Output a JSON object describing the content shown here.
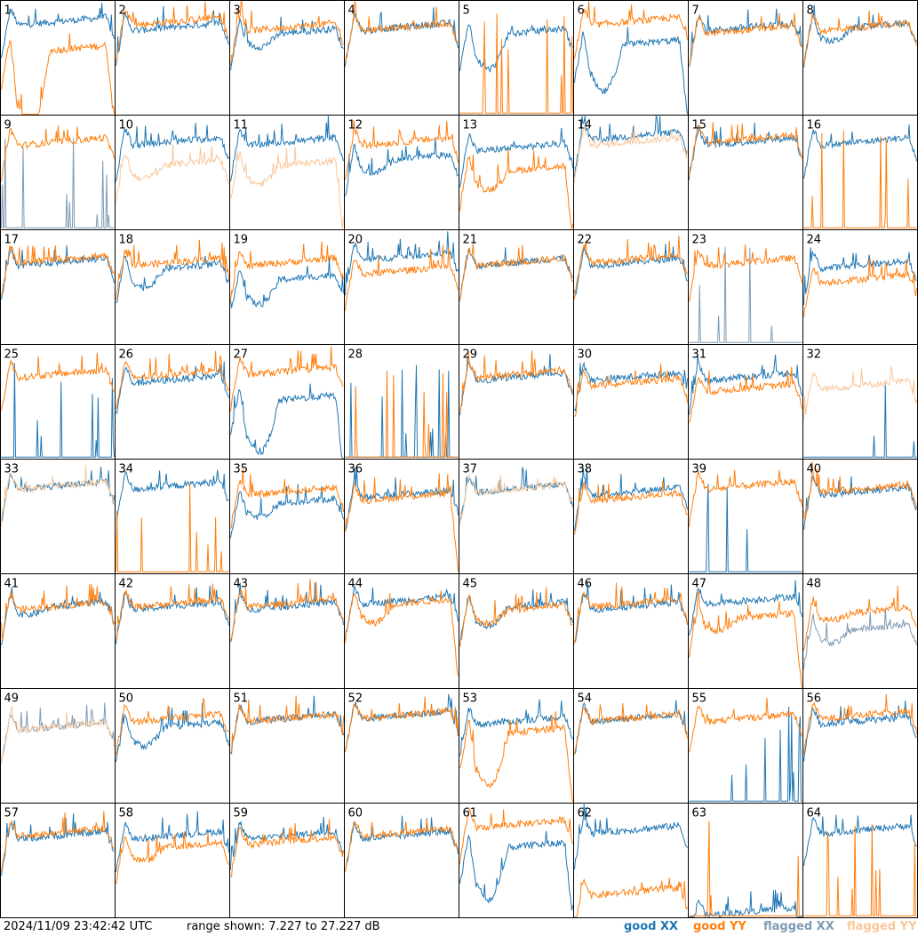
{
  "chart_data": {
    "type": "line",
    "layout": "small-multiples",
    "rows": 8,
    "cols": 8,
    "panel_labels": [
      "1",
      "2",
      "3",
      "4",
      "5",
      "6",
      "7",
      "8",
      "9",
      "10",
      "11",
      "12",
      "13",
      "14",
      "15",
      "16",
      "17",
      "18",
      "19",
      "20",
      "21",
      "22",
      "23",
      "24",
      "25",
      "26",
      "27",
      "28",
      "29",
      "30",
      "31",
      "32",
      "33",
      "34",
      "35",
      "36",
      "37",
      "38",
      "39",
      "40",
      "41",
      "42",
      "43",
      "44",
      "45",
      "46",
      "47",
      "48",
      "49",
      "50",
      "51",
      "52",
      "53",
      "54",
      "55",
      "56",
      "57",
      "58",
      "59",
      "60",
      "61",
      "62",
      "63",
      "64"
    ],
    "y_range_db": [
      7.227,
      27.227
    ],
    "grid": false,
    "series_legend": [
      {
        "key": "good_xx",
        "label": "good XX",
        "color": "#1f77b4"
      },
      {
        "key": "good_yy",
        "label": "good YY",
        "color": "#ff7f0e"
      },
      {
        "key": "flagged_xx",
        "label": "flagged XX",
        "color": "#7f9bb5"
      },
      {
        "key": "flagged_yy",
        "label": "flagged YY",
        "color": "#f9c79b"
      }
    ],
    "panels": [
      {
        "xx": "good",
        "yy": "good",
        "xx_level": 23,
        "yy_level": 18,
        "xx_dip": 0,
        "yy_dip": 14,
        "yy_end_drop": true
      },
      {
        "xx": "good",
        "yy": "good",
        "xx_level": 22,
        "yy_level": 23,
        "xx_dip": 0,
        "yy_dip": 0
      },
      {
        "xx": "good",
        "yy": "good",
        "xx_level": 21,
        "yy_level": 22,
        "xx_dip": 2,
        "yy_dip": 0
      },
      {
        "xx": "good",
        "yy": "good",
        "xx_level": 22,
        "yy_level": 22,
        "xx_dip": 0,
        "yy_dip": 0
      },
      {
        "xx": "good",
        "yy": "good",
        "yy_spiky": true,
        "xx_level": 21,
        "yy_level": 7.5,
        "xx_dip": 6,
        "yy_dip": 0
      },
      {
        "xx": "good",
        "yy": "good",
        "xx_level": 19,
        "yy_level": 23,
        "xx_dip": 8,
        "yy_dip": 0,
        "xx_end_drop": true
      },
      {
        "xx": "good",
        "yy": "good",
        "xx_level": 22,
        "yy_level": 21.5,
        "xx_dip": 0,
        "yy_dip": 0
      },
      {
        "xx": "good",
        "yy": "good",
        "xx_level": 22,
        "yy_level": 22,
        "xx_dip": 2,
        "yy_dip": 0
      },
      {
        "xx": "flagged",
        "yy": "good",
        "xx_spiky": true,
        "xx_level": 7.5,
        "yy_level": 22,
        "xx_dip": 0,
        "yy_dip": 0
      },
      {
        "xx": "good",
        "yy": "flagged",
        "xx_level": 22,
        "yy_level": 18,
        "xx_dip": 0,
        "yy_dip": 2
      },
      {
        "xx": "good",
        "yy": "flagged",
        "xx_level": 22,
        "yy_level": 18,
        "xx_dip": 0,
        "yy_dip": 3,
        "yy_end_drop": true
      },
      {
        "xx": "good",
        "yy": "good",
        "xx_level": 19,
        "yy_level": 22,
        "xx_dip": 2,
        "yy_dip": 0
      },
      {
        "xx": "good",
        "yy": "good",
        "xx_level": 21,
        "yy_level": 17,
        "xx_dip": 0,
        "yy_dip": 3,
        "yy_end_drop": true
      },
      {
        "xx": "good",
        "yy": "flagged",
        "xx_level": 23,
        "yy_level": 22,
        "xx_dip": 0,
        "yy_dip": 0
      },
      {
        "xx": "good",
        "yy": "good",
        "xx_level": 22,
        "yy_level": 22.5,
        "xx_dip": 0,
        "yy_dip": 0
      },
      {
        "xx": "good",
        "yy": "good",
        "yy_spiky": true,
        "xx_level": 22,
        "yy_level": 7.5,
        "xx_dip": 0,
        "yy_dip": 0
      },
      {
        "xx": "good",
        "yy": "good",
        "xx_level": 21,
        "yy_level": 21.5,
        "xx_dip": 0,
        "yy_dip": 0
      },
      {
        "xx": "good",
        "yy": "good",
        "xx_level": 20,
        "yy_level": 21,
        "xx_dip": 3,
        "yy_dip": 0
      },
      {
        "xx": "good",
        "yy": "good",
        "xx_level": 18,
        "yy_level": 21,
        "xx_dip": 4,
        "yy_dip": 0
      },
      {
        "xx": "good",
        "yy": "good",
        "xx_level": 22,
        "yy_level": 19.5,
        "xx_dip": 0,
        "yy_dip": 0
      },
      {
        "xx": "good",
        "yy": "good",
        "xx_level": 21,
        "yy_level": 21,
        "xx_dip": 0,
        "yy_dip": 0
      },
      {
        "xx": "good",
        "yy": "good",
        "xx_level": 21,
        "yy_level": 21.5,
        "xx_dip": 0,
        "yy_dip": 0
      },
      {
        "xx": "flagged",
        "yy": "good",
        "xx_spiky": true,
        "xx_level": 16,
        "yy_level": 21,
        "xx_dip": 0,
        "yy_dip": 0
      },
      {
        "xx": "good",
        "yy": "good",
        "xx_level": 20.5,
        "yy_level": 18,
        "xx_dip": 0,
        "yy_dip": 0
      },
      {
        "xx": "good",
        "yy": "good",
        "xx_spiky": true,
        "xx_level": 7.5,
        "yy_level": 21.5,
        "xx_dip": 0,
        "yy_dip": 0
      },
      {
        "xx": "good",
        "yy": "good",
        "xx_level": 20.5,
        "yy_level": 21.5,
        "xx_dip": 0,
        "yy_dip": 0
      },
      {
        "xx": "good",
        "yy": "good",
        "xx_level": 17,
        "yy_level": 22,
        "xx_dip": 9,
        "yy_dip": 0,
        "xx_end_drop": true
      },
      {
        "xx": "good",
        "yy": "good",
        "xx_spiky": true,
        "yy_spiky": true,
        "xx_level": 7.5,
        "yy_level": 7.5,
        "xx_dip": 0,
        "yy_dip": 0
      },
      {
        "xx": "good",
        "yy": "good",
        "xx_level": 21,
        "yy_level": 21.5,
        "xx_dip": 0,
        "yy_dip": 0
      },
      {
        "xx": "good",
        "yy": "good",
        "xx_level": 21,
        "yy_level": 20,
        "xx_dip": 0,
        "yy_dip": 0
      },
      {
        "xx": "good",
        "yy": "good",
        "xx_level": 21,
        "yy_level": 19,
        "xx_dip": 0,
        "yy_dip": 0
      },
      {
        "xx": "good",
        "yy": "flagged",
        "xx_spiky": true,
        "xx_level": 7.5,
        "yy_level": 19.5,
        "xx_dip": 0,
        "yy_dip": 0
      },
      {
        "xx": "good",
        "yy": "flagged",
        "xx_level": 22,
        "yy_level": 22,
        "xx_dip": 0,
        "yy_dip": 0
      },
      {
        "xx": "good",
        "yy": "good",
        "yy_spiky": true,
        "xx_level": 22,
        "yy_level": 7.5,
        "xx_dip": 0,
        "yy_dip": 0
      },
      {
        "xx": "good",
        "yy": "good",
        "xx_level": 19,
        "yy_level": 21,
        "xx_dip": 2,
        "yy_dip": 0
      },
      {
        "xx": "good",
        "yy": "good",
        "xx_level": 20.5,
        "yy_level": 20,
        "xx_dip": 0,
        "yy_dip": 0,
        "yy_end_drop": true
      },
      {
        "xx": "good",
        "yy": "flagged",
        "xx_level": 21.5,
        "yy_level": 21.5,
        "xx_dip": 0,
        "yy_dip": 0
      },
      {
        "xx": "good",
        "yy": "good",
        "xx_level": 21,
        "yy_level": 20,
        "xx_dip": 0,
        "yy_dip": 0
      },
      {
        "xx": "good",
        "yy": "good",
        "xx_spiky": true,
        "xx_level": 7.5,
        "yy_level": 22,
        "xx_dip": 0,
        "yy_dip": 0
      },
      {
        "xx": "good",
        "yy": "good",
        "xx_level": 21,
        "yy_level": 21.5,
        "xx_dip": 0,
        "yy_dip": 0
      },
      {
        "xx": "good",
        "yy": "good",
        "xx_level": 21,
        "yy_level": 21,
        "xx_dip": 1,
        "yy_dip": 0
      },
      {
        "xx": "good",
        "yy": "good",
        "xx_level": 21,
        "yy_level": 21.5,
        "xx_dip": 0,
        "yy_dip": 0
      },
      {
        "xx": "good",
        "yy": "good",
        "xx_level": 21,
        "yy_level": 21.5,
        "xx_dip": 0,
        "yy_dip": 0
      },
      {
        "xx": "good",
        "yy": "good",
        "xx_level": 22,
        "yy_level": 21.5,
        "xx_dip": 0,
        "yy_dip": 3,
        "yy_end_drop": true
      },
      {
        "xx": "good",
        "yy": "good",
        "xx_level": 21,
        "yy_level": 20.5,
        "xx_dip": 3,
        "yy_dip": 2
      },
      {
        "xx": "good",
        "yy": "good",
        "xx_level": 21,
        "yy_level": 21.5,
        "xx_dip": 0,
        "yy_dip": 0
      },
      {
        "xx": "good",
        "yy": "good",
        "xx_level": 22,
        "yy_level": 19,
        "xx_dip": 0,
        "yy_dip": 2,
        "yy_end_drop": true
      },
      {
        "xx": "flagged",
        "yy": "good",
        "xx_level": 17,
        "yy_level": 20,
        "xx_dip": 2,
        "yy_dip": 1
      },
      {
        "xx": "flagged",
        "yy": "flagged",
        "xx_level": 20,
        "yy_level": 20,
        "xx_dip": 0,
        "yy_dip": 0
      },
      {
        "xx": "good",
        "yy": "good",
        "xx_level": 20,
        "yy_level": 21.5,
        "xx_dip": 3,
        "yy_dip": 0
      },
      {
        "xx": "good",
        "yy": "good",
        "xx_level": 21.5,
        "yy_level": 21.5,
        "xx_dip": 0,
        "yy_dip": 0
      },
      {
        "xx": "good",
        "yy": "good",
        "xx_level": 22,
        "yy_level": 22,
        "xx_dip": 0,
        "yy_dip": 0
      },
      {
        "xx": "good",
        "yy": "good",
        "xx_level": 21,
        "yy_level": 19,
        "xx_dip": 0,
        "yy_dip": 9,
        "yy_end_drop": true
      },
      {
        "xx": "good",
        "yy": "good",
        "xx_level": 21.5,
        "yy_level": 21.5,
        "xx_dip": 0,
        "yy_dip": 0
      },
      {
        "xx": "good",
        "yy": "good",
        "xx_spiky": true,
        "xx_level": 7.5,
        "yy_level": 21.5,
        "xx_dip": 0,
        "yy_dip": 0
      },
      {
        "xx": "good",
        "yy": "good",
        "xx_level": 21,
        "yy_level": 22,
        "xx_dip": 0,
        "yy_dip": 0
      },
      {
        "xx": "good",
        "yy": "good",
        "xx_level": 21,
        "yy_level": 21.5,
        "xx_dip": 0,
        "yy_dip": 0
      },
      {
        "xx": "good",
        "yy": "good",
        "xx_level": 21,
        "yy_level": 19,
        "xx_dip": 0,
        "yy_dip": 2
      },
      {
        "xx": "good",
        "yy": "good",
        "xx_level": 21,
        "yy_level": 20,
        "xx_dip": 0,
        "yy_dip": 0
      },
      {
        "xx": "good",
        "yy": "good",
        "xx_level": 21,
        "yy_level": 21.5,
        "xx_dip": 0,
        "yy_dip": 0
      },
      {
        "xx": "good",
        "yy": "good",
        "xx_level": 19,
        "yy_level": 23,
        "xx_dip": 9,
        "yy_dip": 0,
        "xx_end_drop": true
      },
      {
        "xx": "good",
        "yy": "good",
        "xx_level": 22,
        "yy_level": 11,
        "xx_dip": 0,
        "yy_dip": 0
      },
      {
        "xx": "good",
        "yy": "good",
        "yy_spiky": true,
        "xx_level": 7.5,
        "yy_level": 7.5,
        "xx_dip": 0,
        "yy_dip": 0
      },
      {
        "xx": "good",
        "yy": "good",
        "yy_spiky": true,
        "xx_level": 22,
        "yy_level": 7.5,
        "xx_dip": 0,
        "yy_dip": 0
      }
    ]
  },
  "footer": {
    "timestamp": "2024/11/09 23:42:42 UTC",
    "range_text": "range shown: 7.227 to 27.227 dB"
  }
}
